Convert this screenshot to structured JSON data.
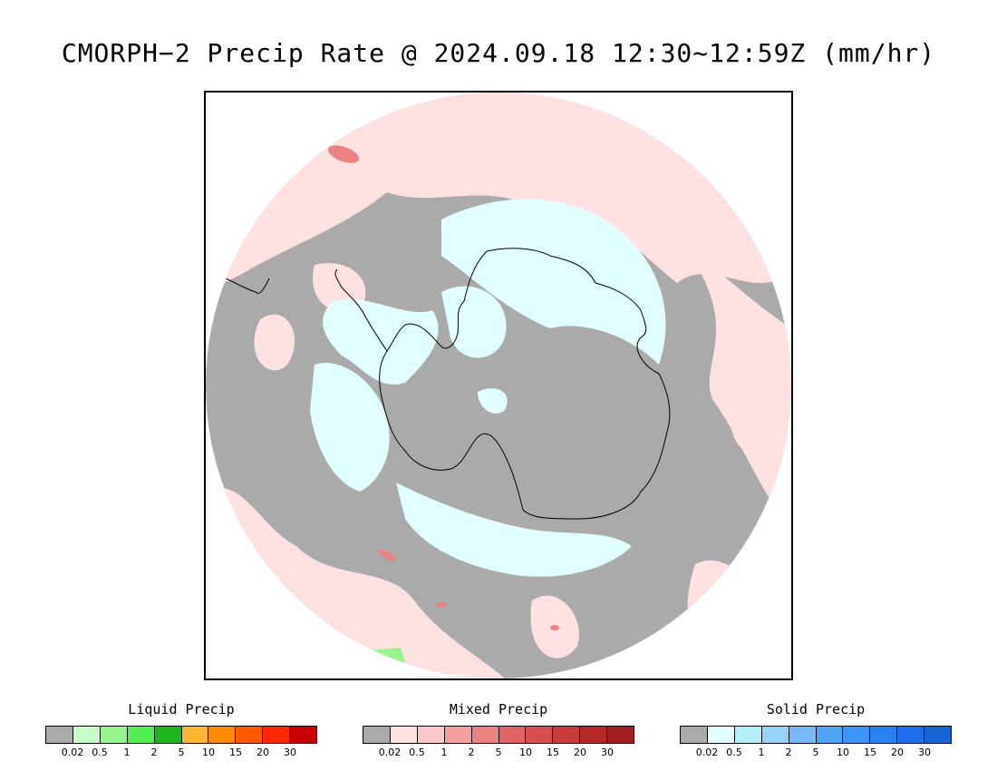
{
  "title": "CMORPH−2 Precip Rate @ 2024.09.18 12:30~12:59Z (mm/hr)",
  "map": {
    "background_color": "#aaaaaa",
    "mixed_light_color": "#ffe1e1",
    "solid_light_color": "#e1ffff",
    "coastline_color": "#000000"
  },
  "legends": [
    {
      "title": "Liquid Precip",
      "colors": [
        "#aaaaaa",
        "#c8ffc8",
        "#96f58c",
        "#50f050",
        "#1eb41e",
        "#ffb432",
        "#ff8c00",
        "#ff5a00",
        "#ff2800",
        "#c80000"
      ],
      "ticks": [
        "0.02",
        "0.5",
        "1",
        "2",
        "5",
        "10",
        "15",
        "20",
        "30"
      ]
    },
    {
      "title": "Mixed Precip",
      "colors": [
        "#aaaaaa",
        "#ffe1e1",
        "#ffc8c8",
        "#f5a0a0",
        "#eb8282",
        "#e16464",
        "#d75050",
        "#c83c3c",
        "#b42828",
        "#a01e1e"
      ],
      "ticks": [
        "0.02",
        "0.5",
        "1",
        "2",
        "5",
        "10",
        "15",
        "20",
        "30"
      ]
    },
    {
      "title": "Solid Precip",
      "colors": [
        "#aaaaaa",
        "#e1ffff",
        "#b4f0fa",
        "#96d2fa",
        "#78b9fa",
        "#50a5f5",
        "#3c96f5",
        "#2882f0",
        "#1e6eeb",
        "#1464d2"
      ],
      "ticks": [
        "0.02",
        "0.5",
        "1",
        "2",
        "5",
        "10",
        "15",
        "20",
        "30"
      ]
    }
  ]
}
